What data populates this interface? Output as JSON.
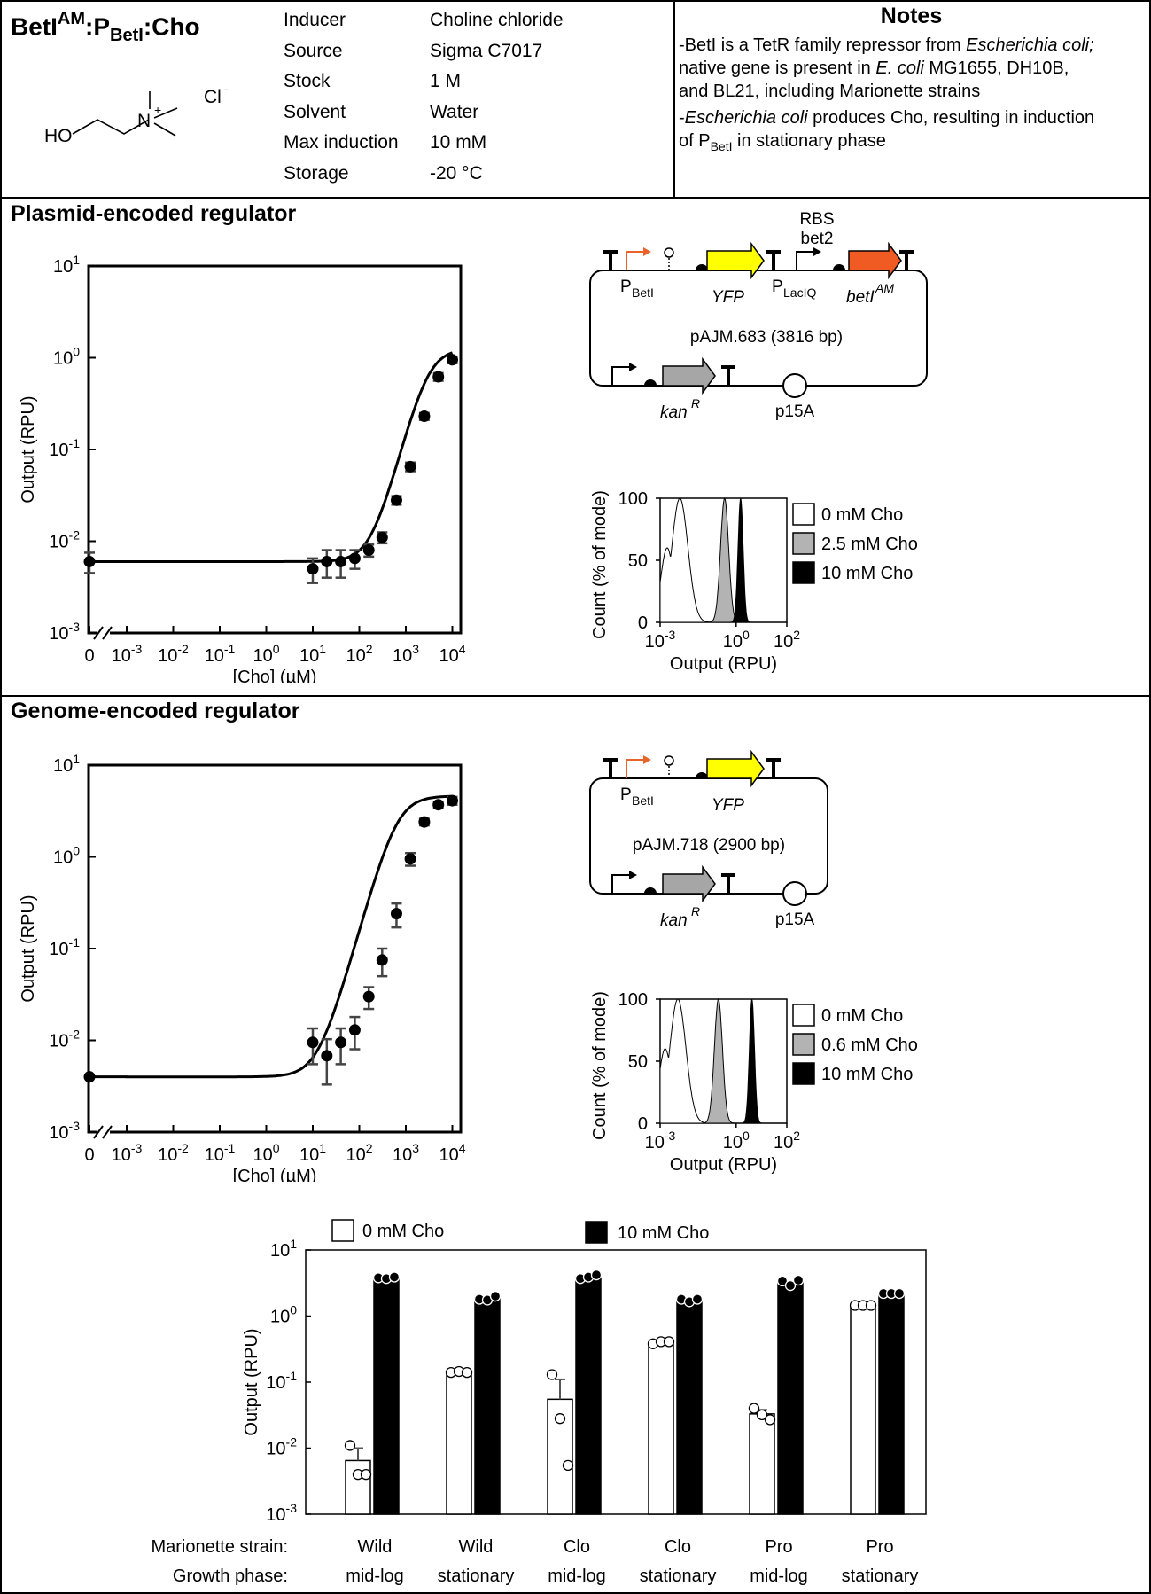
{
  "header": {
    "title_main": "BetI",
    "title_sup": "AM",
    "title_mid": ":P",
    "title_sub": "BetI",
    "title_end": ":Cho",
    "props": [
      {
        "key": "Inducer",
        "value": "Choline chloride"
      },
      {
        "key": "Source",
        "value": "Sigma C7017"
      },
      {
        "key": "Stock",
        "value": "1 M"
      },
      {
        "key": "Solvent",
        "value": "Water"
      },
      {
        "key": "Max induction",
        "value": "10 mM"
      },
      {
        "key": "Storage",
        "value": "-20 °C"
      }
    ],
    "molecule": {
      "ho": "HO",
      "n": "N",
      "plus": "+",
      "cl": "Cl",
      "minus": "-"
    }
  },
  "notes": {
    "title": "Notes",
    "n1a": "-BetI is a TetR family repressor from ",
    "n1b": "Escherichia coli;",
    "n1c": "native gene is present in ",
    "n1d": "E. coli",
    "n1e": " MG1655, DH10B,",
    "n1f": "and BL21, including Marionette strains",
    "n2a": "-",
    "n2b": "Escherichia coli",
    "n2c": " produces Cho, resulting in induction",
    "n2d": "of P",
    "n2e": "BetI",
    "n2f": " in stationary phase"
  },
  "sections": {
    "plasmid": "Plasmid-encoded regulator",
    "genome": "Genome-encoded regulator"
  },
  "plasmid_map1": {
    "name": "pAJM.683 (3816 bp)",
    "p_betI": "P",
    "p_betI_sub": "BetI",
    "yfp": "YFP",
    "p_laciq": "P",
    "p_laciq_sub": "LacIQ",
    "rbs": "RBS",
    "rbs2": "bet2",
    "beti": "betI",
    "beti_sup": "AM",
    "kan": "kan",
    "kan_sup": "R",
    "ori": "p15A"
  },
  "plasmid_map2": {
    "name": "pAJM.718 (2900 bp)",
    "p_betI": "P",
    "p_betI_sub": "BetI",
    "yfp": "YFP",
    "kan": "kan",
    "kan_sup": "R",
    "ori": "p15A"
  },
  "colors": {
    "promoter_induced": "#e8642a",
    "yfp": "#ffff00",
    "beti": "#f05a23",
    "kan": "#a6a6a6",
    "gray_fill": "#b3b3b3"
  },
  "chart_data": [
    {
      "type": "scatter",
      "name_id": "plasmid-dose-response",
      "xlabel": "[Cho] (µM)",
      "ylabel": "Output (RPU)",
      "xscale": "log",
      "yscale": "log",
      "x_ticks": [
        "0",
        "10-3",
        "10-2",
        "10-1",
        "100",
        "101",
        "102",
        "103",
        "104"
      ],
      "y_ticks": [
        "10-3",
        "10-2",
        "10-1",
        "100",
        "101"
      ],
      "ylim": [
        0.001,
        10
      ],
      "zero_point": {
        "x": 0,
        "y": 0.006,
        "err": 0.0015
      },
      "points": [
        {
          "x": 10,
          "y": 0.005,
          "err": 0.0015
        },
        {
          "x": 20,
          "y": 0.006,
          "err": 0.002
        },
        {
          "x": 40,
          "y": 0.006,
          "err": 0.002
        },
        {
          "x": 80,
          "y": 0.0065,
          "err": 0.0015
        },
        {
          "x": 160,
          "y": 0.008,
          "err": 0.0012
        },
        {
          "x": 310,
          "y": 0.011,
          "err": 0.0015
        },
        {
          "x": 630,
          "y": 0.028,
          "err": 0.003
        },
        {
          "x": 1250,
          "y": 0.065,
          "err": 0.007
        },
        {
          "x": 2500,
          "y": 0.23,
          "err": 0.02
        },
        {
          "x": 5000,
          "y": 0.62,
          "err": 0.06
        },
        {
          "x": 10000,
          "y": 0.95,
          "err": 0.08
        }
      ],
      "fit": {
        "ymin": 0.006,
        "ymax": 1.25,
        "K": 3000,
        "n": 1.9
      }
    },
    {
      "type": "scatter",
      "name_id": "genome-dose-response",
      "xlabel": "[Cho] (µM)",
      "ylabel": "Output (RPU)",
      "xscale": "log",
      "yscale": "log",
      "x_ticks": [
        "0",
        "10-3",
        "10-2",
        "10-1",
        "100",
        "101",
        "102",
        "103",
        "104"
      ],
      "y_ticks": [
        "10-3",
        "10-2",
        "10-1",
        "100",
        "101"
      ],
      "ylim": [
        0.001,
        10
      ],
      "zero_point": {
        "x": 0,
        "y": 0.004,
        "err": 0
      },
      "points": [
        {
          "x": 10,
          "y": 0.0095,
          "err": 0.004
        },
        {
          "x": 20,
          "y": 0.0068,
          "err": 0.0035
        },
        {
          "x": 40,
          "y": 0.0095,
          "err": 0.004
        },
        {
          "x": 80,
          "y": 0.013,
          "err": 0.005
        },
        {
          "x": 160,
          "y": 0.03,
          "err": 0.008
        },
        {
          "x": 310,
          "y": 0.075,
          "err": 0.025
        },
        {
          "x": 630,
          "y": 0.24,
          "err": 0.07
        },
        {
          "x": 1250,
          "y": 0.95,
          "err": 0.15
        },
        {
          "x": 2500,
          "y": 2.4,
          "err": 0.2
        },
        {
          "x": 5000,
          "y": 3.7,
          "err": 0.3
        },
        {
          "x": 10000,
          "y": 4.1,
          "err": 0.4
        }
      ],
      "fit": {
        "ymin": 0.004,
        "ymax": 4.6,
        "K": 650,
        "n": 1.8
      }
    },
    {
      "type": "area",
      "name_id": "plasmid-histogram",
      "xlabel": "Output (RPU)",
      "ylabel": "Count (% of mode)",
      "x_ticks": [
        "10-3",
        "100",
        "102"
      ],
      "y_ticks": [
        "0",
        "50",
        "100"
      ],
      "legend": [
        "0 mM Cho",
        "2.5 mM Cho",
        "10 mM Cho"
      ],
      "peaks": [
        0.006,
        0.35,
        1.5
      ]
    },
    {
      "type": "area",
      "name_id": "genome-histogram",
      "xlabel": "Output (RPU)",
      "ylabel": "Count (% of mode)",
      "x_ticks": [
        "10-3",
        "100",
        "102"
      ],
      "y_ticks": [
        "0",
        "50",
        "100"
      ],
      "legend": [
        "0 mM Cho",
        "0.6 mM Cho",
        "10 mM Cho"
      ],
      "peaks": [
        0.005,
        0.2,
        4.2
      ]
    },
    {
      "type": "bar",
      "name_id": "strain-bar-chart",
      "ylabel": "Output (RPU)",
      "y_ticks": [
        "10-3",
        "10-2",
        "10-1",
        "100",
        "101"
      ],
      "ylim": [
        0.001,
        10
      ],
      "legend": [
        "0 mM Cho",
        "10 mM Cho"
      ],
      "row_labels": [
        "Marionette strain:",
        "Growth phase:"
      ],
      "categories": [
        {
          "strain": "Wild",
          "phase": "mid-log"
        },
        {
          "strain": "Wild",
          "phase": "stationary"
        },
        {
          "strain": "Clo",
          "phase": "mid-log"
        },
        {
          "strain": "Clo",
          "phase": "stationary"
        },
        {
          "strain": "Pro",
          "phase": "mid-log"
        },
        {
          "strain": "Pro",
          "phase": "stationary"
        }
      ],
      "series": [
        {
          "name": "0 mM Cho",
          "values": [
            0.0065,
            0.14,
            0.055,
            0.4,
            0.033,
            1.45
          ],
          "err": [
            0.0035,
            0,
            0.055,
            0,
            0.005,
            0
          ],
          "points": [
            [
              0.011,
              0.004,
              0.004
            ],
            [
              0.14,
              0.145,
              0.14
            ],
            [
              0.13,
              0.028,
              0.0055
            ],
            [
              0.38,
              0.41,
              0.41
            ],
            [
              0.04,
              0.032,
              0.027
            ],
            [
              1.45,
              1.45,
              1.45
            ]
          ]
        },
        {
          "name": "10 mM Cho",
          "values": [
            3.8,
            1.9,
            3.9,
            1.75,
            3.3,
            2.2
          ],
          "err": [
            0,
            0,
            0,
            0,
            0,
            0
          ],
          "points": [
            [
              3.8,
              3.7,
              3.9
            ],
            [
              1.8,
              1.75,
              2.0
            ],
            [
              3.7,
              3.9,
              4.2
            ],
            [
              1.8,
              1.65,
              1.8
            ],
            [
              3.4,
              2.9,
              3.5
            ],
            [
              2.2,
              2.2,
              2.2
            ]
          ]
        }
      ]
    }
  ]
}
